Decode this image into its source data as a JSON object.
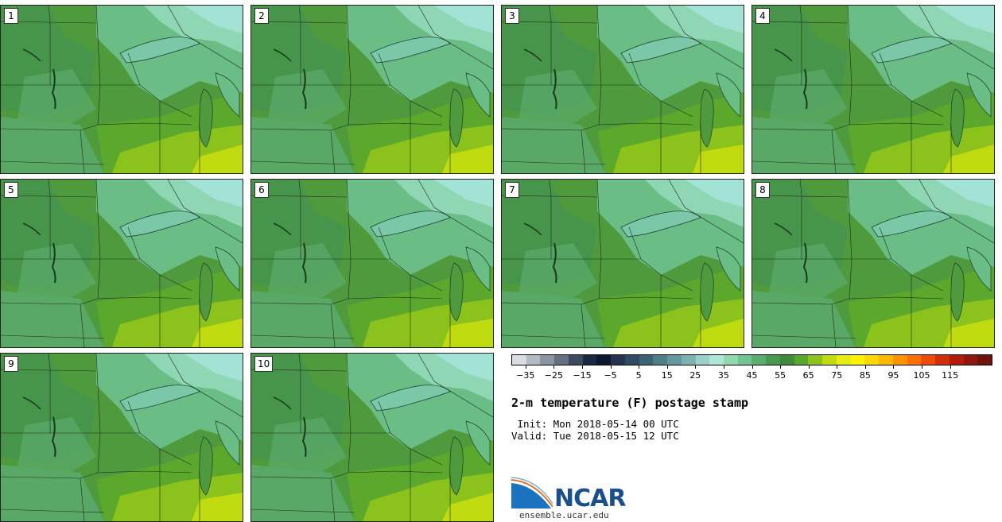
{
  "panels": [
    {
      "label": "1"
    },
    {
      "label": "2"
    },
    {
      "label": "3"
    },
    {
      "label": "4"
    },
    {
      "label": "5"
    },
    {
      "label": "6"
    },
    {
      "label": "7"
    },
    {
      "label": "8"
    },
    {
      "label": "9"
    },
    {
      "label": "10"
    }
  ],
  "legend": {
    "colors": [
      "#d9dde3",
      "#b3bac4",
      "#8b94a3",
      "#646f82",
      "#3c4960",
      "#1b2640",
      "#0d1730",
      "#25344d",
      "#2f4b62",
      "#3d6274",
      "#4e7e88",
      "#63989c",
      "#7db2b1",
      "#9ad0c8",
      "#aee6d8",
      "#8fd8b0",
      "#6fc48f",
      "#58ae6e",
      "#47994f",
      "#3f8a3a",
      "#5aa82a",
      "#8cc21c",
      "#c0dc10",
      "#e6ee10",
      "#fff200",
      "#ffd800",
      "#ffb800",
      "#ff9400",
      "#ff7000",
      "#f04a08",
      "#d22e08",
      "#b21c0a",
      "#8e160c",
      "#6e140c"
    ],
    "tick_labels": [
      "−35",
      "−25",
      "−15",
      "−5",
      "5",
      "15",
      "25",
      "35",
      "45",
      "55",
      "65",
      "75",
      "85",
      "95",
      "105",
      "115"
    ]
  },
  "title": "2-m temperature (F) postage stamp",
  "init": " Init: Mon 2018-05-14 00 UTC",
  "valid": "Valid: Tue 2018-05-15 12 UTC",
  "logo": {
    "name": "NCAR",
    "website": "ensemble.ucar.edu"
  }
}
